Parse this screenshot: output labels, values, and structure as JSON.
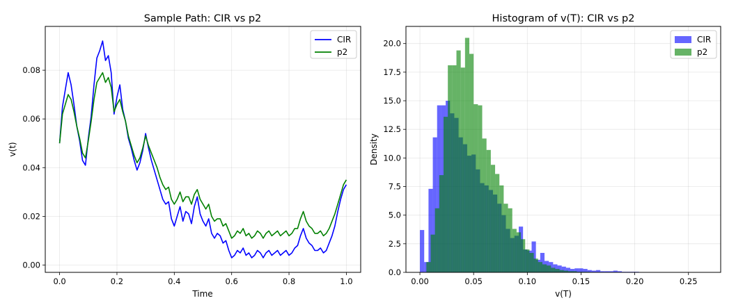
{
  "chart_data": [
    {
      "type": "line",
      "title": "Sample Path: CIR vs p2",
      "xlabel": "Time",
      "ylabel": "v(t)",
      "xlim": [
        -0.05,
        1.05
      ],
      "ylim": [
        -0.003,
        0.098
      ],
      "xticks": [
        0.0,
        0.2,
        0.4,
        0.6,
        0.8,
        1.0
      ],
      "xtick_labels": [
        "0.0",
        "0.2",
        "0.4",
        "0.6",
        "0.8",
        "1.0"
      ],
      "yticks": [
        0.0,
        0.02,
        0.04,
        0.06,
        0.08
      ],
      "ytick_labels": [
        "0.00",
        "0.02",
        "0.04",
        "0.06",
        "0.08"
      ],
      "grid": true,
      "legend": "top-right",
      "series": [
        {
          "name": "CIR",
          "color": "#0000ff",
          "x": [
            0.0,
            0.01,
            0.02,
            0.03,
            0.04,
            0.05,
            0.06,
            0.07,
            0.08,
            0.09,
            0.1,
            0.11,
            0.12,
            0.13,
            0.14,
            0.15,
            0.16,
            0.17,
            0.18,
            0.19,
            0.2,
            0.21,
            0.22,
            0.23,
            0.24,
            0.25,
            0.26,
            0.27,
            0.28,
            0.29,
            0.3,
            0.31,
            0.32,
            0.33,
            0.34,
            0.35,
            0.36,
            0.37,
            0.38,
            0.39,
            0.4,
            0.41,
            0.42,
            0.43,
            0.44,
            0.45,
            0.46,
            0.47,
            0.48,
            0.49,
            0.5,
            0.51,
            0.52,
            0.53,
            0.54,
            0.55,
            0.56,
            0.57,
            0.58,
            0.59,
            0.6,
            0.61,
            0.62,
            0.63,
            0.64,
            0.65,
            0.66,
            0.67,
            0.68,
            0.69,
            0.7,
            0.71,
            0.72,
            0.73,
            0.74,
            0.75,
            0.76,
            0.77,
            0.78,
            0.79,
            0.8,
            0.81,
            0.82,
            0.83,
            0.84,
            0.85,
            0.86,
            0.87,
            0.88,
            0.89,
            0.9,
            0.91,
            0.92,
            0.93,
            0.94,
            0.95,
            0.96,
            0.97,
            0.98,
            0.99,
            1.0
          ],
          "values": [
            0.05,
            0.065,
            0.072,
            0.079,
            0.074,
            0.066,
            0.057,
            0.051,
            0.043,
            0.041,
            0.052,
            0.061,
            0.074,
            0.085,
            0.088,
            0.092,
            0.084,
            0.086,
            0.079,
            0.062,
            0.069,
            0.074,
            0.064,
            0.059,
            0.052,
            0.048,
            0.043,
            0.039,
            0.042,
            0.047,
            0.054,
            0.048,
            0.043,
            0.039,
            0.035,
            0.031,
            0.027,
            0.025,
            0.026,
            0.019,
            0.016,
            0.02,
            0.024,
            0.018,
            0.022,
            0.021,
            0.017,
            0.024,
            0.028,
            0.021,
            0.018,
            0.016,
            0.019,
            0.013,
            0.011,
            0.013,
            0.012,
            0.009,
            0.01,
            0.006,
            0.003,
            0.004,
            0.006,
            0.005,
            0.007,
            0.004,
            0.005,
            0.003,
            0.004,
            0.006,
            0.005,
            0.003,
            0.005,
            0.006,
            0.004,
            0.005,
            0.006,
            0.004,
            0.005,
            0.006,
            0.004,
            0.005,
            0.007,
            0.008,
            0.012,
            0.015,
            0.011,
            0.009,
            0.008,
            0.006,
            0.006,
            0.007,
            0.005,
            0.006,
            0.009,
            0.012,
            0.016,
            0.022,
            0.027,
            0.031,
            0.033
          ]
        },
        {
          "name": "p2",
          "color": "#008000",
          "x": [
            0.0,
            0.01,
            0.02,
            0.03,
            0.04,
            0.05,
            0.06,
            0.07,
            0.08,
            0.09,
            0.1,
            0.11,
            0.12,
            0.13,
            0.14,
            0.15,
            0.16,
            0.17,
            0.18,
            0.19,
            0.2,
            0.21,
            0.22,
            0.23,
            0.24,
            0.25,
            0.26,
            0.27,
            0.28,
            0.29,
            0.3,
            0.31,
            0.32,
            0.33,
            0.34,
            0.35,
            0.36,
            0.37,
            0.38,
            0.39,
            0.4,
            0.41,
            0.42,
            0.43,
            0.44,
            0.45,
            0.46,
            0.47,
            0.48,
            0.49,
            0.5,
            0.51,
            0.52,
            0.53,
            0.54,
            0.55,
            0.56,
            0.57,
            0.58,
            0.59,
            0.6,
            0.61,
            0.62,
            0.63,
            0.64,
            0.65,
            0.66,
            0.67,
            0.68,
            0.69,
            0.7,
            0.71,
            0.72,
            0.73,
            0.74,
            0.75,
            0.76,
            0.77,
            0.78,
            0.79,
            0.8,
            0.81,
            0.82,
            0.83,
            0.84,
            0.85,
            0.86,
            0.87,
            0.88,
            0.89,
            0.9,
            0.91,
            0.92,
            0.93,
            0.94,
            0.95,
            0.96,
            0.97,
            0.98,
            0.99,
            1.0
          ],
          "values": [
            0.05,
            0.062,
            0.066,
            0.07,
            0.068,
            0.063,
            0.057,
            0.052,
            0.046,
            0.044,
            0.051,
            0.059,
            0.068,
            0.075,
            0.077,
            0.079,
            0.075,
            0.077,
            0.073,
            0.063,
            0.066,
            0.068,
            0.063,
            0.059,
            0.053,
            0.049,
            0.045,
            0.042,
            0.044,
            0.048,
            0.053,
            0.049,
            0.046,
            0.043,
            0.04,
            0.036,
            0.033,
            0.031,
            0.032,
            0.027,
            0.025,
            0.027,
            0.03,
            0.026,
            0.028,
            0.028,
            0.025,
            0.029,
            0.031,
            0.027,
            0.025,
            0.023,
            0.025,
            0.02,
            0.018,
            0.019,
            0.019,
            0.016,
            0.017,
            0.014,
            0.011,
            0.012,
            0.014,
            0.013,
            0.015,
            0.012,
            0.013,
            0.011,
            0.012,
            0.014,
            0.013,
            0.011,
            0.013,
            0.014,
            0.012,
            0.013,
            0.014,
            0.012,
            0.013,
            0.014,
            0.012,
            0.013,
            0.015,
            0.015,
            0.019,
            0.022,
            0.018,
            0.016,
            0.015,
            0.013,
            0.013,
            0.014,
            0.012,
            0.013,
            0.015,
            0.018,
            0.021,
            0.025,
            0.029,
            0.033,
            0.035
          ]
        }
      ]
    },
    {
      "type": "bar",
      "title": "Histogram of v(T): CIR vs p2",
      "xlabel": "v(T)",
      "ylabel": "Density",
      "xlim": [
        -0.013,
        0.28
      ],
      "ylim": [
        0,
        21.5
      ],
      "xticks": [
        0.0,
        0.05,
        0.1,
        0.15,
        0.2,
        0.25
      ],
      "xtick_labels": [
        "0.00",
        "0.05",
        "0.10",
        "0.15",
        "0.20",
        "0.25"
      ],
      "yticks": [
        0,
        2.5,
        5,
        7.5,
        10,
        12.5,
        15,
        17.5,
        20
      ],
      "ytick_labels": [
        "0.0",
        "2.5",
        "5.0",
        "7.5",
        "10.0",
        "12.5",
        "15.0",
        "17.5",
        "20.0"
      ],
      "grid": true,
      "legend": "top-right",
      "series": [
        {
          "name": "CIR",
          "color": "#0000ff",
          "opacity": 0.6,
          "bin_start": 0.0,
          "bin_width": 0.004,
          "values": [
            3.7,
            0.9,
            7.3,
            11.8,
            14.6,
            14.6,
            15.0,
            13.9,
            13.5,
            11.8,
            11.2,
            10.2,
            10.3,
            9.0,
            7.8,
            7.6,
            7.2,
            6.8,
            6.0,
            5.0,
            3.8,
            3.0,
            3.2,
            4.0,
            2.0,
            1.9,
            2.7,
            1.1,
            1.7,
            1.0,
            0.9,
            0.7,
            0.6,
            0.5,
            0.4,
            0.3,
            0.35,
            0.35,
            0.3,
            0.2,
            0.15,
            0.2,
            0.1,
            0.1,
            0.1,
            0.15,
            0.1,
            0.05,
            0.05,
            0.05,
            0.05,
            0.03,
            0.03,
            0.03,
            0.03,
            0.02,
            0.02,
            0.02,
            0.02,
            0.02,
            0.02,
            0.01,
            0.01,
            0.01,
            0.01,
            0.01
          ]
        },
        {
          "name": "p2",
          "color": "#008000",
          "opacity": 0.6,
          "bin_start": 0.006,
          "bin_width": 0.004,
          "values": [
            0.9,
            3.3,
            5.6,
            8.5,
            13.6,
            18.1,
            18.1,
            19.4,
            17.9,
            20.5,
            19.1,
            14.7,
            14.6,
            11.7,
            10.7,
            9.4,
            8.6,
            7.6,
            6.0,
            5.6,
            3.8,
            3.5,
            2.9,
            2.0,
            1.7,
            1.2,
            0.9,
            0.7,
            0.6,
            0.4,
            0.3,
            0.2,
            0.15,
            0.1,
            0.1,
            0.05,
            0.05,
            0.05,
            0.02,
            0.02,
            0.02
          ]
        }
      ]
    }
  ]
}
